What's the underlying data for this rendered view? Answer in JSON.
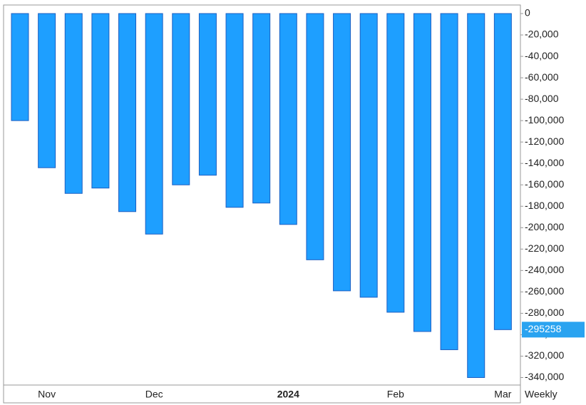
{
  "chart_data": {
    "type": "bar",
    "categories": [
      null,
      "Nov",
      null,
      null,
      null,
      "Dec",
      null,
      null,
      null,
      null,
      "2024",
      null,
      null,
      null,
      "Feb",
      null,
      null,
      null,
      "Mar"
    ],
    "bold_categories": [
      "2024"
    ],
    "values": [
      -100000,
      -144000,
      -168000,
      -163000,
      -185000,
      -206000,
      -160000,
      -151000,
      -181000,
      -177000,
      -197000,
      -230000,
      -259000,
      -265000,
      -279000,
      -297000,
      -314000,
      -340000,
      -295258
    ],
    "color": "#1e9fff",
    "edge_color": "#1d5fc2",
    "x_label": "Weekly",
    "ylim": [
      -347000,
      8000
    ],
    "yticks": [
      0,
      {
        "value": -20000,
        "label": "-20,000"
      },
      {
        "value": -40000,
        "label": "-40,000"
      },
      {
        "value": -60000,
        "label": "-60,000"
      },
      {
        "value": -80000,
        "label": "-80,000"
      },
      {
        "value": -100000,
        "label": "-100,000"
      },
      {
        "value": -120000,
        "label": "-120,000"
      },
      {
        "value": -140000,
        "label": "-140,000"
      },
      {
        "value": -160000,
        "label": "-160,000"
      },
      {
        "value": -180000,
        "label": "-180,000"
      },
      {
        "value": -200000,
        "label": "-200,000"
      },
      {
        "value": -220000,
        "label": "-220,000"
      },
      {
        "value": -240000,
        "label": "-240,000"
      },
      {
        "value": -260000,
        "label": "-260,000"
      },
      {
        "value": -280000,
        "label": "-280,000"
      },
      {
        "value": -300000,
        "label": "-300,000"
      },
      {
        "value": -320000,
        "label": "-320,000"
      },
      {
        "value": -340000,
        "label": "-340,000"
      }
    ],
    "last_value_color": "#2aa3f0"
  }
}
